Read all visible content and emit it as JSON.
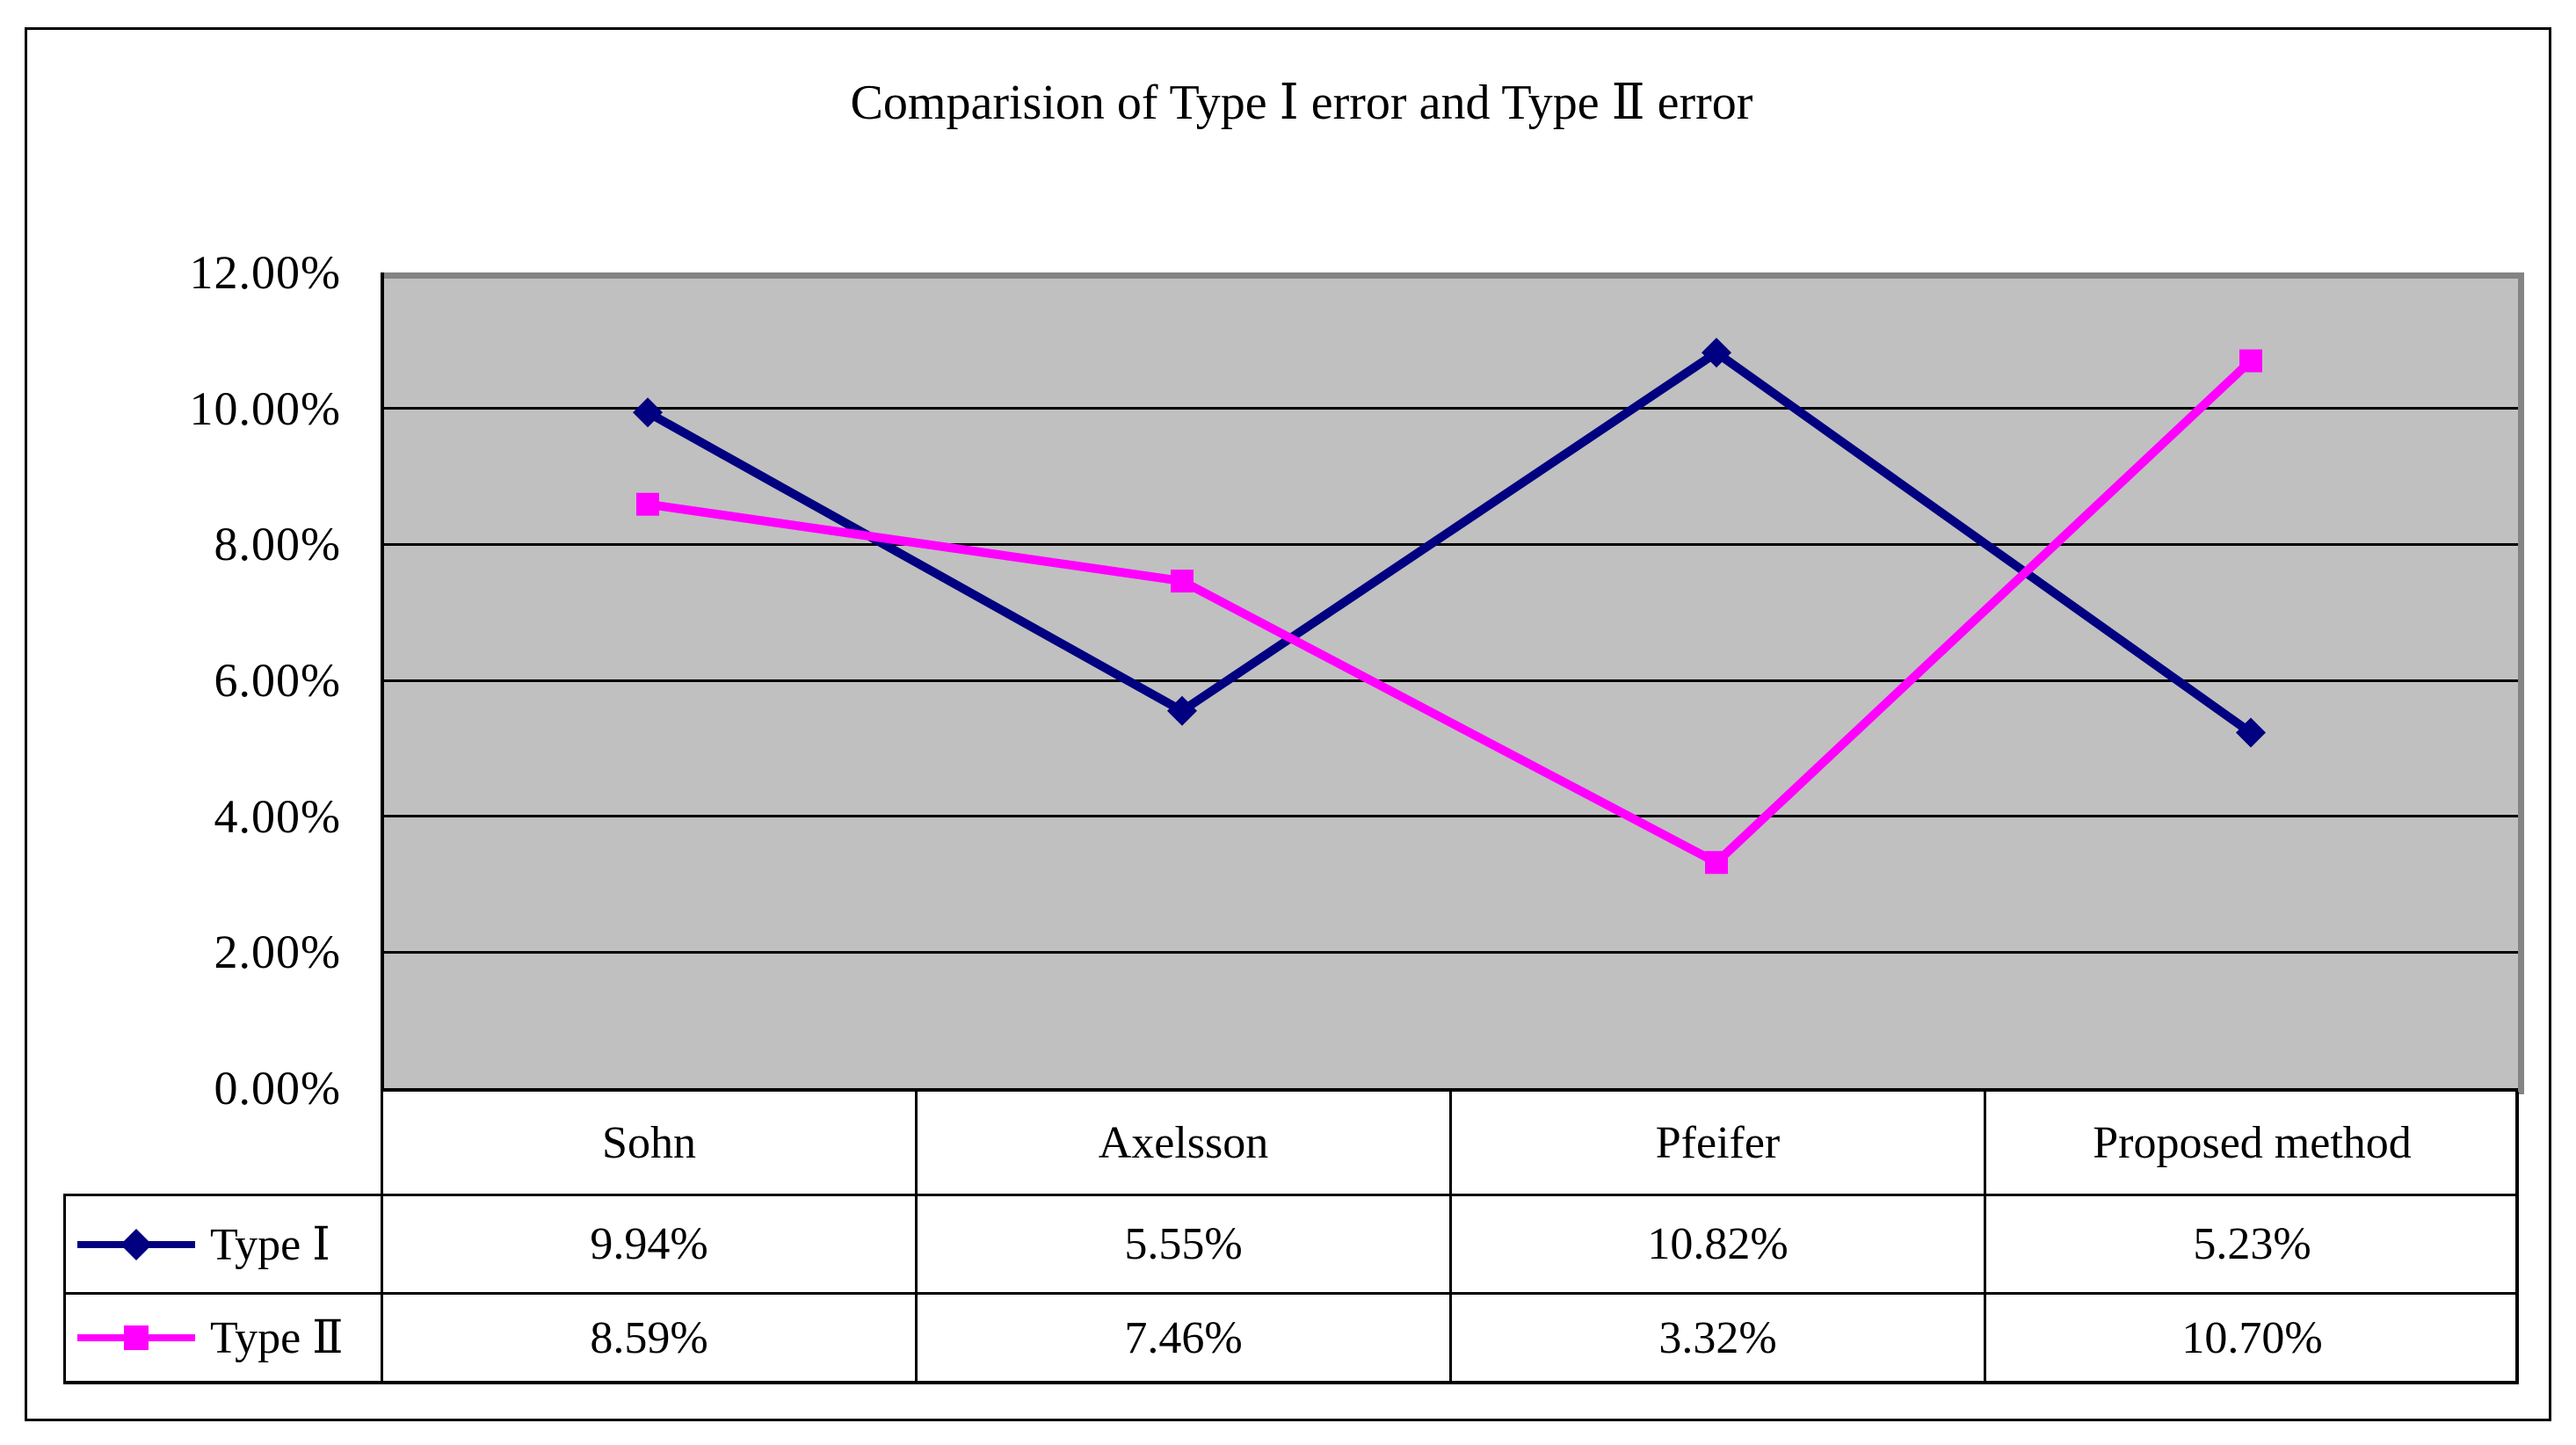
{
  "title": "Comparision of Type Ⅰ error and Type Ⅱ error",
  "y_axis": {
    "tick_labels": [
      "12.00%",
      "10.00%",
      "8.00%",
      "6.00%",
      "4.00%",
      "2.00%",
      "0.00%"
    ]
  },
  "table": {
    "column_headers": [
      "Sohn",
      "Axelsson",
      "Pfeifer",
      "Proposed method"
    ],
    "rows": [
      {
        "label": "Type Ⅰ",
        "values": [
          "9.94%",
          "5.55%",
          "10.82%",
          "5.23%"
        ]
      },
      {
        "label": "Type Ⅱ",
        "values": [
          "8.59%",
          "7.46%",
          "3.32%",
          "10.70%"
        ]
      }
    ]
  },
  "chart_data": {
    "type": "line",
    "title": "Comparision of Type Ⅰ error and Type Ⅱ error",
    "categories": [
      "Sohn",
      "Axelsson",
      "Pfeifer",
      "Proposed method"
    ],
    "series": [
      {
        "name": "Type Ⅰ",
        "color": "#000080",
        "marker": "diamond",
        "values": [
          9.94,
          5.55,
          10.82,
          5.23
        ],
        "values_display": [
          "9.94%",
          "5.55%",
          "10.82%",
          "5.23%"
        ]
      },
      {
        "name": "Type Ⅱ",
        "color": "#FF00FF",
        "marker": "square",
        "values": [
          8.59,
          7.46,
          3.32,
          10.7
        ],
        "values_display": [
          "8.59%",
          "7.46%",
          "3.32%",
          "10.70%"
        ]
      }
    ],
    "ylim": [
      0,
      12
    ],
    "y_tick_step": 2,
    "y_tick_format": "percent_2dp",
    "grid": "horizontal-only",
    "plot_background": "#C0C0C0",
    "legend_position": "left-of-table-rows"
  },
  "colors": {
    "series1": "#000080",
    "series2": "#FF00FF",
    "plot_bg": "#C0C0C0",
    "plot_border": "#848484",
    "grid_and_text": "#000000"
  }
}
